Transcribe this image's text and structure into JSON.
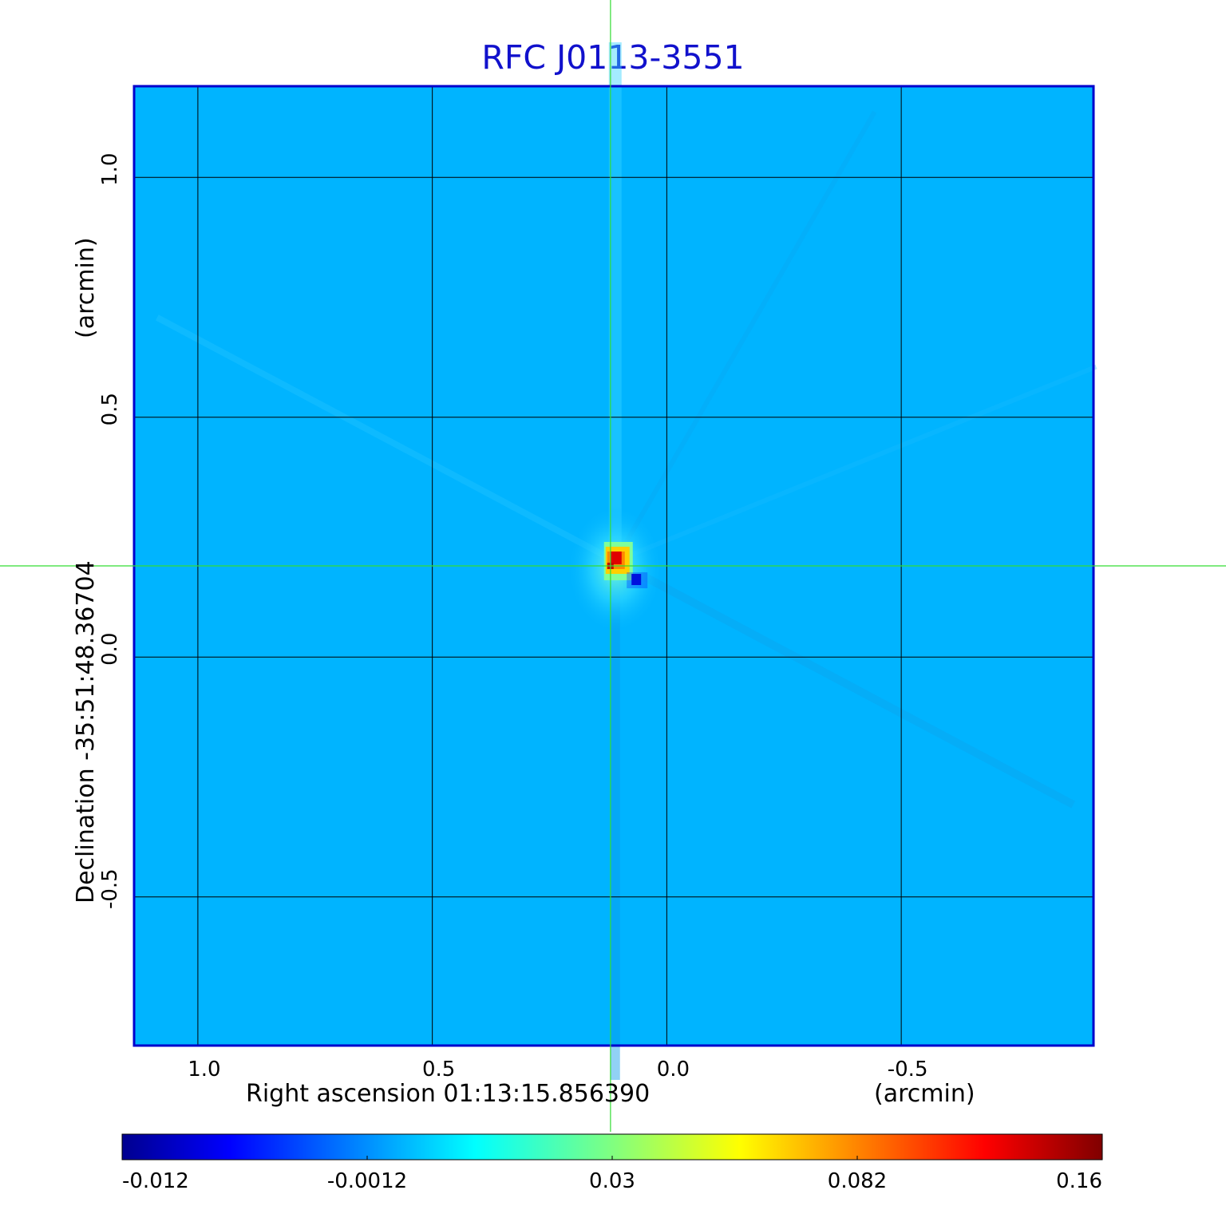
{
  "title": "RFC J0113-3551",
  "x_axis": {
    "label": "Right ascension  01:13:15.856390",
    "unit": "(arcmin)"
  },
  "y_axis": {
    "label": "Declination  -35:51:48.36704",
    "unit": "(arcmin)"
  },
  "chart_data": {
    "type": "heatmap",
    "title": "RFC J0113-3551",
    "xlabel": "Right ascension  01:13:15.856390 (arcmin)",
    "ylabel": "Declination  -35:51:48.36704 (arcmin)",
    "x_ticks": [
      1.0,
      0.5,
      0.0,
      -0.5
    ],
    "x_tick_labels": [
      "1.0",
      "0.5",
      "0.0",
      "-0.5"
    ],
    "y_ticks": [
      1.0,
      0.5,
      0.0,
      -0.5
    ],
    "y_tick_labels": [
      "1.0",
      "0.5",
      "0.0",
      "-0.5"
    ],
    "xlim": [
      1.136,
      -0.91
    ],
    "ylim": [
      -0.81,
      1.19
    ],
    "x_reversed": true,
    "grid": true,
    "crosshair": {
      "x": 0.12,
      "y": 0.19
    },
    "peak": {
      "x": 0.11,
      "y": 0.2,
      "value": 0.16
    },
    "negative_spot": {
      "x": 0.065,
      "y": 0.16,
      "value": -0.012
    },
    "colorbar": {
      "ticks": [
        "-0.012",
        "-0.0012",
        "0.03",
        "0.082",
        "0.16"
      ],
      "colormap": "jet",
      "range": [
        -0.012,
        0.16
      ]
    }
  },
  "colors": {
    "background": "#00b4ff",
    "title": "#1111cc",
    "frame": "#0000cc",
    "crosshair": "#33dd33",
    "grid": "#000000"
  }
}
